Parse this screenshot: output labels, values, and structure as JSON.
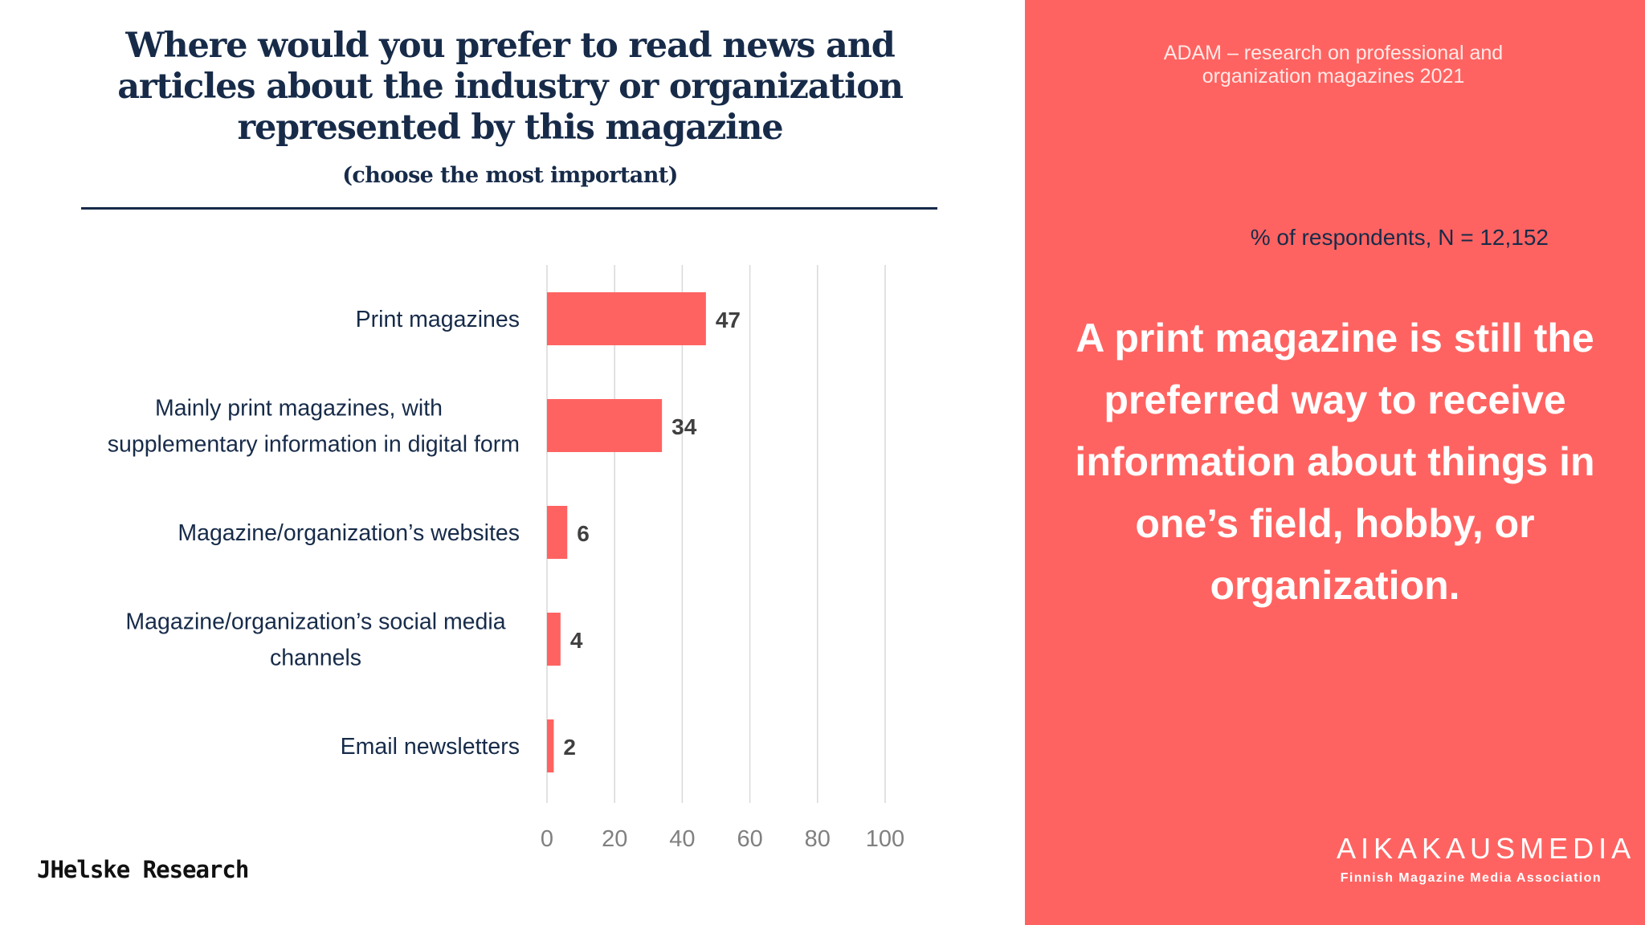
{
  "header": {
    "title": "Where would you prefer to read news and articles about the industry or organization represented by this magazine",
    "subtitle": "(choose the most important)",
    "units": "% of respondents, N = 12,152"
  },
  "source": "JHelske Research",
  "sidebar": {
    "eyebrow": "ADAM – research on professional and organization magazines 2021",
    "quote": "A print magazine is still the preferred way to receive information about things in one’s field, hobby, or organization.",
    "logo": "AIKAKAUSMEDIA",
    "logo_sub": "Finnish Magazine Media Association"
  },
  "colors": {
    "accent": "#ff6361",
    "title": "#172b49",
    "grid": "#d9d9d9",
    "axis_label": "#808080",
    "value_label": "#404040"
  },
  "chart_data": {
    "type": "bar",
    "orientation": "horizontal",
    "title": "Where would you prefer to read news and articles about the industry or organization represented by this magazine",
    "subtitle": "(choose the most important)",
    "xlabel": "% of respondents, N = 12,152",
    "categories": [
      [
        "Print magazines"
      ],
      [
        "Mainly print magazines, with",
        "supplementary information in digital form"
      ],
      [
        "Magazine/organization’s websites"
      ],
      [
        "Magazine/organization’s social media",
        "channels"
      ],
      [
        "Email newsletters"
      ]
    ],
    "values": [
      47,
      34,
      6,
      4,
      2
    ],
    "xlim": [
      0,
      100
    ],
    "xticks": [
      0,
      20,
      40,
      60,
      80,
      100
    ],
    "grid": true,
    "legend": "none"
  }
}
